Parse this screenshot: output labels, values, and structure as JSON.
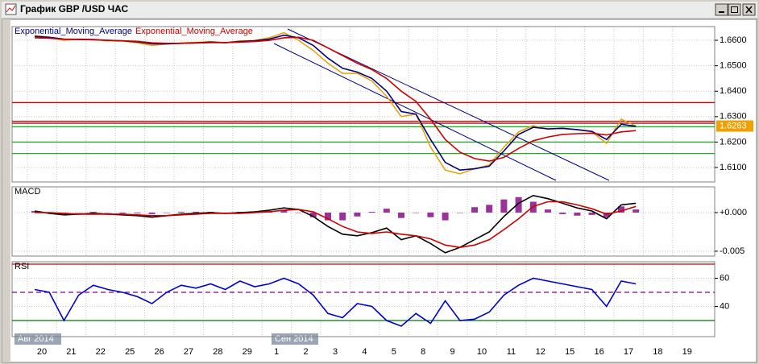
{
  "window": {
    "title": "График GBP /USD  ЧАС"
  },
  "x_axis": {
    "categories": [
      "20",
      null,
      "21",
      null,
      "22",
      null,
      "25",
      null,
      "26",
      null,
      "27",
      null,
      "28",
      null,
      "29",
      null,
      "1",
      null,
      "2",
      null,
      "3",
      null,
      "4",
      null,
      "5",
      null,
      "8",
      null,
      "9",
      null,
      "10",
      null,
      "11",
      null,
      "12",
      null,
      "15",
      null,
      "16",
      null,
      "17",
      null,
      "18",
      null,
      "19",
      null
    ],
    "month_labels": [
      "Авг 2014",
      "Сен 2014"
    ]
  },
  "chart_data": [
    {
      "type": "line",
      "legend": "top-left",
      "grid": true,
      "ylim": [
        1.6043,
        1.6654
      ],
      "yticks": [
        {
          "value": 1.66,
          "label": "1.6600"
        },
        {
          "value": 1.65,
          "label": "1.6500"
        },
        {
          "value": 1.64,
          "label": "1.6400"
        },
        {
          "value": 1.63,
          "label": "1.6300"
        },
        {
          "value": 1.62,
          "label": "1.6200"
        },
        {
          "value": 1.61,
          "label": "1.6100"
        }
      ],
      "levels": [
        {
          "value": 1.6355,
          "color": "#cc0000"
        },
        {
          "value": 1.6282,
          "color": "#cc0000"
        },
        {
          "value": 1.6274,
          "color": "#800000"
        },
        {
          "value": 1.626,
          "color": "#22aa22"
        },
        {
          "value": 1.62,
          "color": "#22aa22"
        },
        {
          "value": 1.6155,
          "color": "#22aa22"
        }
      ],
      "price_marker": {
        "value": 1.6263,
        "label": "1.6263",
        "color": "#f0a000"
      },
      "series": [
        {
          "color": "#e8a000",
          "values": [
            1.662,
            1.6612,
            1.66,
            1.6605,
            1.6602,
            1.6598,
            1.6597,
            1.659,
            1.658,
            1.6585,
            1.659,
            1.6592,
            1.6595,
            1.659,
            1.6598,
            1.66,
            1.661,
            1.663,
            1.66,
            1.656,
            1.651,
            1.647,
            1.647,
            1.644,
            1.638,
            1.63,
            1.631,
            1.618,
            1.609,
            1.6075,
            1.6095,
            1.611,
            1.618,
            1.624,
            1.6265,
            1.625,
            1.6255,
            1.6248,
            1.624,
            1.6195,
            1.629,
            1.6263,
            null,
            null,
            null,
            null
          ]
        },
        {
          "name": "Exponential_Moving_Average",
          "color": "#000080",
          "values": [
            1.6615,
            1.6612,
            1.6605,
            1.6604,
            1.6603,
            1.66,
            1.6598,
            1.6594,
            1.6586,
            1.6586,
            1.6588,
            1.659,
            1.6593,
            1.6591,
            1.6595,
            1.6598,
            1.6605,
            1.662,
            1.661,
            1.658,
            1.653,
            1.649,
            1.6475,
            1.645,
            1.64,
            1.632,
            1.631,
            1.621,
            1.612,
            1.609,
            1.6095,
            1.6105,
            1.6165,
            1.623,
            1.6258,
            1.6252,
            1.6254,
            1.6249,
            1.6242,
            1.621,
            1.627,
            1.6262,
            null,
            null,
            null,
            null
          ]
        },
        {
          "name": "Exponential_Moving_Average",
          "color": "#cc0000",
          "values": [
            1.661,
            1.6608,
            1.6604,
            1.6603,
            1.6602,
            1.66,
            1.6598,
            1.6596,
            1.659,
            1.6588,
            1.6588,
            1.6589,
            1.6591,
            1.6591,
            1.6593,
            1.6595,
            1.66,
            1.661,
            1.6612,
            1.66,
            1.657,
            1.654,
            1.651,
            1.6485,
            1.645,
            1.64,
            1.636,
            1.629,
            1.621,
            1.616,
            1.6135,
            1.6125,
            1.614,
            1.6175,
            1.6205,
            1.622,
            1.623,
            1.6233,
            1.6235,
            1.6228,
            1.624,
            1.6245,
            null,
            null,
            null,
            null
          ]
        }
      ]
    },
    {
      "type": "macd",
      "title": "MACD",
      "grid": true,
      "ylim": [
        -0.00563,
        0.00333
      ],
      "yticks": [
        {
          "value": 0,
          "label": "+0.000"
        },
        {
          "value": -0.005,
          "label": "-0.005"
        }
      ],
      "series": [
        {
          "kind": "bar",
          "color": "#800080",
          "values": [
            0.0002,
            -0.0001,
            -0.0002,
            0,
            0.0001,
            0,
            -0.0001,
            -0.0001,
            -0.0002,
            0,
            0.0001,
            0.0001,
            0.0001,
            0,
            0.0001,
            0.0001,
            0.0002,
            0.0003,
            0,
            -0.0006,
            -0.001,
            -0.001,
            -0.0005,
            0.0001,
            0.0005,
            -0.0007,
            0,
            -0.0006,
            -0.001,
            0,
            0.0007,
            0.001,
            0.0017,
            0.002,
            0.0014,
            0.0004,
            -0.0002,
            -0.0004,
            -0.0003,
            -0.0006,
            0.0008,
            0.0004,
            null,
            null,
            null,
            null
          ]
        },
        {
          "kind": "line",
          "color": "#000000",
          "values": [
            0.0002,
            -0.0001,
            -0.0003,
            -0.0002,
            -0.0001,
            -0.0002,
            -0.0003,
            -0.0004,
            -0.0006,
            -0.0004,
            -0.0002,
            -0.0001,
            0,
            -0.0001,
            0,
            0.0001,
            0.0003,
            0.0006,
            0.0004,
            -0.0005,
            -0.0018,
            -0.0028,
            -0.003,
            -0.0026,
            -0.002,
            -0.0035,
            -0.003,
            -0.004,
            -0.0052,
            -0.0045,
            -0.0035,
            -0.0025,
            -0.0005,
            0.0012,
            0.0022,
            0.0018,
            0.0012,
            0.0006,
            0.0002,
            -0.0008,
            0.001,
            0.0012,
            null,
            null,
            null,
            null
          ]
        },
        {
          "kind": "line",
          "color": "#cc0000",
          "values": [
            0,
            0,
            -0.0001,
            -0.0002,
            -0.0002,
            -0.0002,
            -0.0002,
            -0.0003,
            -0.0004,
            -0.0004,
            -0.0003,
            -0.0002,
            -0.0001,
            -0.0001,
            -0.0001,
            0,
            0.0001,
            0.0003,
            0.0004,
            0.0001,
            -0.0008,
            -0.0018,
            -0.0025,
            -0.0027,
            -0.0025,
            -0.0028,
            -0.003,
            -0.0034,
            -0.0042,
            -0.0045,
            -0.0042,
            -0.0035,
            -0.0022,
            -0.0008,
            0.0008,
            0.0014,
            0.0014,
            0.001,
            0.0005,
            -0.0002,
            0.0002,
            0.0008,
            null,
            null,
            null,
            null
          ]
        }
      ]
    },
    {
      "type": "line",
      "title": "RSI",
      "grid": true,
      "ylim": [
        18.6,
        71.7
      ],
      "yticks": [
        60,
        40
      ],
      "levels": [
        {
          "value": 70,
          "color": "#cc0000"
        },
        {
          "value": 50,
          "color": "#800080",
          "style": "dashed"
        },
        {
          "value": 30,
          "color": "#007700"
        }
      ],
      "series": [
        {
          "color": "#0000cc",
          "values": [
            52,
            50,
            30,
            48,
            55,
            52,
            50,
            47,
            42,
            50,
            55,
            53,
            56,
            52,
            58,
            54,
            56,
            60,
            56,
            48,
            35,
            32,
            42,
            40,
            30,
            26,
            35,
            28,
            44,
            30,
            31,
            36,
            48,
            55,
            60,
            58,
            56,
            54,
            52,
            40,
            58,
            56,
            null,
            null,
            null,
            null
          ]
        }
      ]
    }
  ]
}
